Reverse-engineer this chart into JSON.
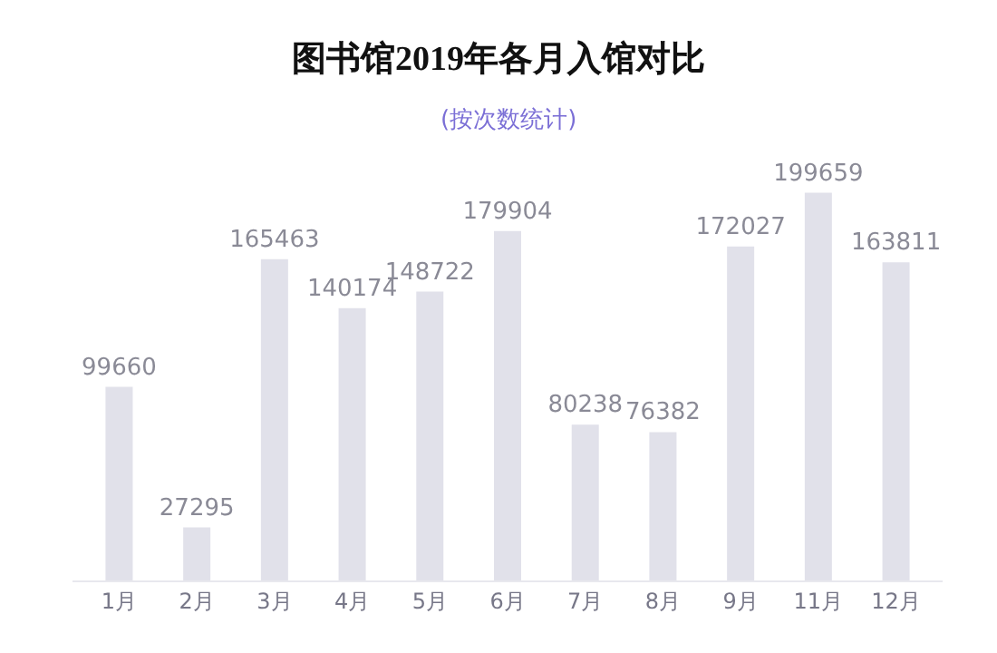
{
  "chart_data": {
    "type": "bar",
    "title": "图书馆2019年各月入馆对比",
    "subtitle": "(按次数统计)",
    "categories": [
      "1月",
      "2月",
      "3月",
      "4月",
      "5月",
      "6月",
      "7月",
      "8月",
      "9月",
      "11月",
      "12月"
    ],
    "values": [
      99660,
      27295,
      165463,
      140174,
      148722,
      179904,
      80238,
      76382,
      172027,
      199659,
      163811
    ],
    "color": "#e1e1ea",
    "data_labels": true,
    "tick_labels": "x"
  }
}
